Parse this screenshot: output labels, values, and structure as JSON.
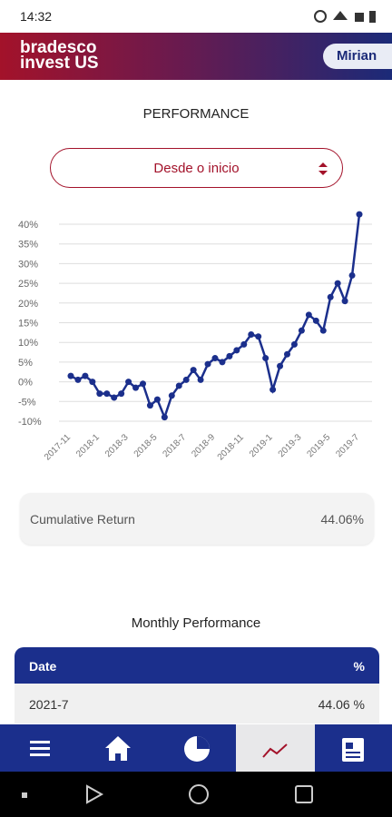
{
  "status_bar": {
    "time": "14:32"
  },
  "header": {
    "brand_line1": "bradesco",
    "brand_line2": "invest US",
    "user": "Mirian"
  },
  "section_title": "PERFORMANCE",
  "period_select": "Desde o inicio",
  "chart_data": {
    "type": "line",
    "categories": [
      "2017-11",
      null,
      null,
      null,
      "2018-1",
      null,
      null,
      null,
      "2018-3",
      null,
      null,
      null,
      "2018-5",
      null,
      null,
      null,
      "2018-7",
      null,
      null,
      null,
      "2018-9",
      null,
      null,
      null,
      "2018-11",
      null,
      null,
      null,
      "2019-1",
      null,
      null,
      null,
      "2019-3",
      null,
      null,
      null,
      "2019-5",
      null,
      null,
      null,
      "2019-7"
    ],
    "values": [
      1.5,
      0.5,
      1.5,
      0,
      -3,
      -3,
      -4,
      -3,
      0,
      -1.5,
      -0.5,
      -6,
      -4.5,
      -9,
      -3.5,
      -1,
      0.5,
      3,
      0.5,
      4.5,
      6,
      5,
      6.5,
      8,
      9.5,
      12,
      11.5,
      6,
      -2,
      4,
      7,
      9.5,
      13,
      17,
      15.5,
      13,
      21.5,
      25,
      20.5,
      27,
      42.5
    ],
    "color": "#1b2f8c",
    "ylim": [
      -10,
      45
    ],
    "yticks": [
      {
        "value": -10,
        "label": "-10%"
      },
      {
        "value": -5,
        "label": "-5%"
      },
      {
        "value": 0,
        "label": "0%"
      },
      {
        "value": 5,
        "label": "5%"
      },
      {
        "value": 10,
        "label": "10%"
      },
      {
        "value": 15,
        "label": "15%"
      },
      {
        "value": 20,
        "label": "20%"
      },
      {
        "value": 25,
        "label": "25%"
      },
      {
        "value": 30,
        "label": "30%"
      },
      {
        "value": 35,
        "label": "35%"
      },
      {
        "value": 40,
        "label": "40%"
      }
    ],
    "grid": true
  },
  "cumulative": {
    "label": "Cumulative Return",
    "value": "44.06%"
  },
  "monthly": {
    "title": "Monthly Performance",
    "table": {
      "header": [
        "Date",
        "%"
      ],
      "rows": [
        [
          "2021-7",
          "44.06 %"
        ]
      ]
    }
  }
}
